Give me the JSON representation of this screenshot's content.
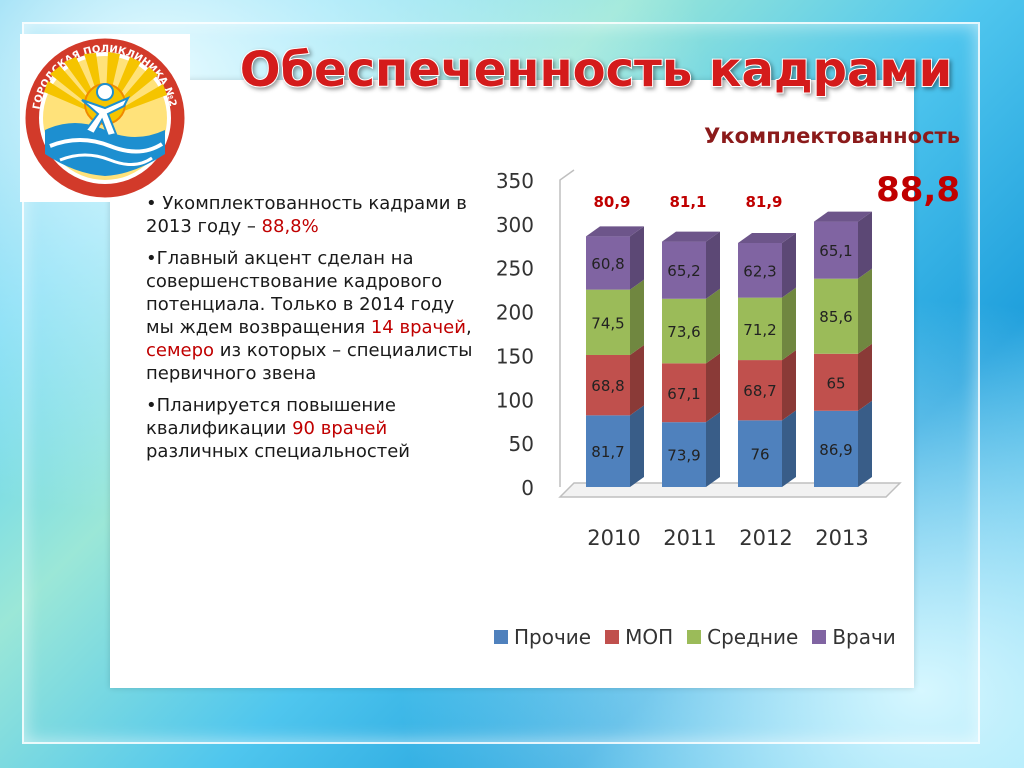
{
  "title": "Обеспеченность кадрами",
  "logo": {
    "ring_text": "ГОРОДСКАЯ ПОЛИКЛИНИКА №2",
    "colors": {
      "ring": "#d23a2a",
      "sun": "#f5c400",
      "water": "#1d8fd0",
      "figure": "#ffffff"
    }
  },
  "text": {
    "p1_a": "• Укомплектованность кадрами в 2013 году – ",
    "p1_b": "88,8%",
    "p2_a": "•Главный акцент сделан на совершенствование кадрового потенциала. Только в 2014 году мы ждем возвращения  ",
    "p2_b": "14 врачей",
    "p2_c": ", ",
    "p2_d": "семеро",
    "p2_e": " из которых – специалисты первичного звена",
    "p3_a": "•Планируется повышение квалификации ",
    "p3_b": "90 врачей",
    "p3_c": " различных специальностей"
  },
  "chart_data": {
    "type": "bar",
    "stacked": true,
    "title": "Укомплектованность",
    "categories": [
      "2010",
      "2011",
      "2012",
      "2013"
    ],
    "series": [
      {
        "name": "Прочие",
        "color": "#4f81bd",
        "values": [
          81.7,
          73.9,
          76,
          86.9
        ],
        "labels": [
          "81,7",
          "73,9",
          "76",
          "86,9"
        ]
      },
      {
        "name": "МОП",
        "color": "#c0504d",
        "values": [
          68.8,
          67.1,
          68.7,
          65
        ],
        "labels": [
          "68,8",
          "67,1",
          "68,7",
          "65"
        ]
      },
      {
        "name": "Средние",
        "color": "#9bbb59",
        "values": [
          74.5,
          73.6,
          71.2,
          85.6
        ],
        "labels": [
          "74,5",
          "73,6",
          "71,2",
          "85,6"
        ]
      },
      {
        "name": "Врачи",
        "color": "#8064a2",
        "values": [
          60.8,
          65.2,
          62.3,
          65.1
        ],
        "labels": [
          "60,8",
          "65,2",
          "62,3",
          "65,1"
        ]
      }
    ],
    "top_labels": [
      "80,9",
      "81,1",
      "81,9"
    ],
    "highlight_label": "88,8",
    "ylim": [
      0,
      350
    ],
    "yticks": [
      "0",
      "50",
      "100",
      "150",
      "200",
      "250",
      "300",
      "350"
    ],
    "grid": false,
    "legend_position": "bottom"
  }
}
